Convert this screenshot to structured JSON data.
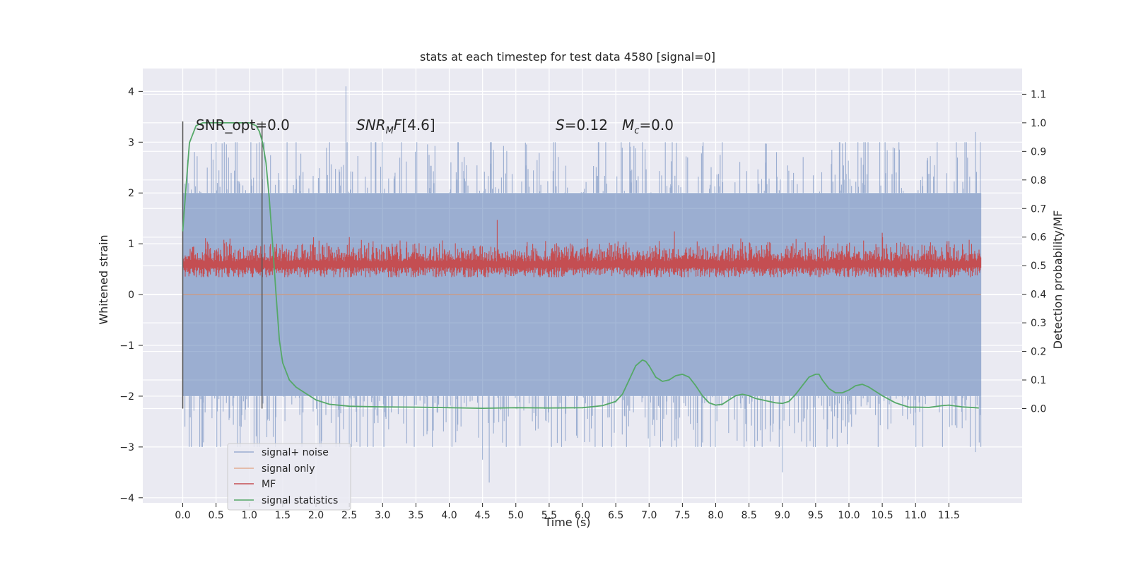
{
  "chart_data": {
    "type": "line",
    "title": "stats at each timestep for test data 4580 [signal=0]",
    "xlabel": "Time (s)",
    "ylabel_left": "Whitened strain",
    "ylabel_right": "Detection probability/MF",
    "xlim": [
      -0.6,
      12.6
    ],
    "ylim_left": [
      -4.1,
      4.45
    ],
    "ylim_right": [
      -0.33,
      1.19
    ],
    "x_ticks": [
      "0.0",
      "0.5",
      "1.0",
      "1.5",
      "2.0",
      "2.5",
      "3.0",
      "3.5",
      "4.0",
      "4.5",
      "5.0",
      "5.5",
      "6.0",
      "6.5",
      "7.0",
      "7.5",
      "8.0",
      "8.5",
      "9.0",
      "9.5",
      "10.0",
      "10.5",
      "11.0",
      "11.5"
    ],
    "y_ticks_left": [
      "4",
      "3",
      "2",
      "1",
      "0",
      "−1",
      "−2",
      "−3",
      "−4"
    ],
    "y_ticks_right": [
      "1.1",
      "1.0",
      "0.9",
      "0.8",
      "0.7",
      "0.6",
      "0.5",
      "0.4",
      "0.3",
      "0.2",
      "0.1",
      "0.0"
    ],
    "grid": true,
    "legend_position": "lower-left",
    "colors": {
      "plot_bg": "#eaeaf2",
      "noise": "#4c72b0",
      "signal_only": "#dd8452",
      "mf": "#c44e52",
      "stats": "#55a868",
      "vline": "#555555"
    },
    "series": [
      {
        "name": "signal+ noise",
        "axis": "left",
        "envelope_low": -2.0,
        "envelope_high": 2.0,
        "max": 4.1,
        "min": -3.7,
        "x_range": [
          0.0,
          11.98
        ]
      },
      {
        "name": "signal only",
        "axis": "left",
        "values_constant": 0.0,
        "x_range": [
          0.0,
          11.98
        ]
      },
      {
        "name": "MF",
        "axis": "right",
        "baseline": 0.5,
        "typical_high": 0.58,
        "peak": 0.66,
        "x_range": [
          0.0,
          11.98
        ]
      },
      {
        "name": "signal statistics",
        "axis": "right",
        "x": [
          0.0,
          0.05,
          0.1,
          0.2,
          0.3,
          0.5,
          0.8,
          1.0,
          1.1,
          1.15,
          1.2,
          1.25,
          1.3,
          1.35,
          1.4,
          1.45,
          1.5,
          1.6,
          1.7,
          1.8,
          2.0,
          2.2,
          2.5,
          3.0,
          3.5,
          4.0,
          4.5,
          5.0,
          5.5,
          6.0,
          6.3,
          6.5,
          6.6,
          6.7,
          6.8,
          6.9,
          6.95,
          7.0,
          7.1,
          7.2,
          7.3,
          7.4,
          7.5,
          7.6,
          7.7,
          7.8,
          7.9,
          8.0,
          8.1,
          8.2,
          8.3,
          8.4,
          8.5,
          8.6,
          8.7,
          8.8,
          8.9,
          9.0,
          9.1,
          9.2,
          9.3,
          9.4,
          9.5,
          9.55,
          9.6,
          9.7,
          9.8,
          9.9,
          10.0,
          10.1,
          10.2,
          10.3,
          10.4,
          10.5,
          10.7,
          10.9,
          11.0,
          11.2,
          11.4,
          11.5,
          11.7,
          11.9,
          11.95
        ],
        "y": [
          0.62,
          0.78,
          0.93,
          0.99,
          1.0,
          1.0,
          1.0,
          1.0,
          0.99,
          0.97,
          0.93,
          0.86,
          0.73,
          0.57,
          0.4,
          0.24,
          0.16,
          0.1,
          0.075,
          0.06,
          0.03,
          0.015,
          0.008,
          0.006,
          0.005,
          0.003,
          0.001,
          0.003,
          0.002,
          0.003,
          0.01,
          0.025,
          0.05,
          0.1,
          0.15,
          0.17,
          0.165,
          0.15,
          0.11,
          0.095,
          0.1,
          0.115,
          0.12,
          0.11,
          0.08,
          0.045,
          0.02,
          0.012,
          0.015,
          0.03,
          0.045,
          0.05,
          0.045,
          0.035,
          0.03,
          0.025,
          0.02,
          0.018,
          0.025,
          0.05,
          0.08,
          0.11,
          0.12,
          0.12,
          0.1,
          0.07,
          0.055,
          0.055,
          0.065,
          0.08,
          0.085,
          0.075,
          0.06,
          0.045,
          0.02,
          0.005,
          0.005,
          0.004,
          0.01,
          0.012,
          0.006,
          0.003,
          0.002
        ]
      }
    ],
    "vlines": [
      0.0,
      1.19
    ],
    "annotations": {
      "snr_opt": "SNR_opt=0.0",
      "snr_mf": "[4.6]",
      "s_value": "=0.12",
      "mc_value": "=0.0"
    },
    "legend": [
      "signal+ noise",
      "signal only",
      "MF",
      "signal statistics"
    ]
  }
}
